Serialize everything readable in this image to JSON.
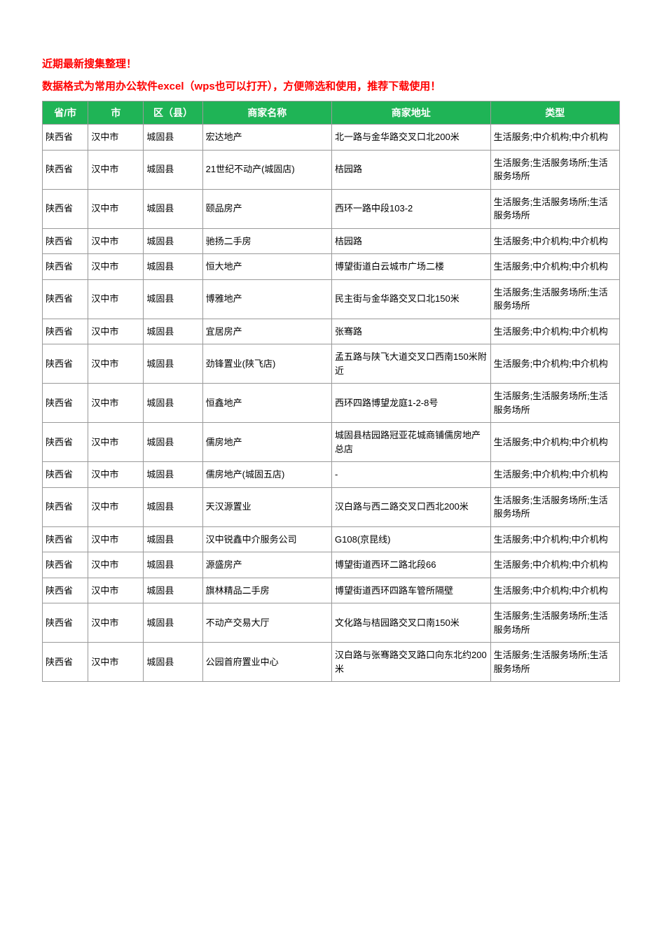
{
  "notice_line1": "近期最新搜集整理！",
  "notice_line2": "数据格式为常用办公软件excel（wps也可以打开），方便筛选和使用，推荐下载使用！",
  "header_bg_color": "#1fb456",
  "header_text_color": "#ffffff",
  "notice_color": "#ff0000",
  "border_color": "#999999",
  "columns": [
    {
      "key": "province",
      "label": "省/市",
      "class": "col-province"
    },
    {
      "key": "city",
      "label": "市",
      "class": "col-city"
    },
    {
      "key": "district",
      "label": "区（县）",
      "class": "col-district"
    },
    {
      "key": "name",
      "label": "商家名称",
      "class": "col-name"
    },
    {
      "key": "address",
      "label": "商家地址",
      "class": "col-address"
    },
    {
      "key": "type",
      "label": "类型",
      "class": "col-type"
    }
  ],
  "rows": [
    {
      "province": "陕西省",
      "city": "汉中市",
      "district": "城固县",
      "name": "宏达地产",
      "address": "北一路与金华路交叉口北200米",
      "type": "生活服务;中介机构;中介机构"
    },
    {
      "province": "陕西省",
      "city": "汉中市",
      "district": "城固县",
      "name": "21世纪不动产(城固店)",
      "address": "桔园路",
      "type": "生活服务;生活服务场所;生活服务场所"
    },
    {
      "province": "陕西省",
      "city": "汉中市",
      "district": "城固县",
      "name": "颐品房产",
      "address": "西环一路中段103-2",
      "type": "生活服务;生活服务场所;生活服务场所"
    },
    {
      "province": "陕西省",
      "city": "汉中市",
      "district": "城固县",
      "name": "驰扬二手房",
      "address": "桔园路",
      "type": "生活服务;中介机构;中介机构"
    },
    {
      "province": "陕西省",
      "city": "汉中市",
      "district": "城固县",
      "name": "恒大地产",
      "address": "博望街道白云城市广场二楼",
      "type": "生活服务;中介机构;中介机构"
    },
    {
      "province": "陕西省",
      "city": "汉中市",
      "district": "城固县",
      "name": "博雅地产",
      "address": "民主街与金华路交叉口北150米",
      "type": "生活服务;生活服务场所;生活服务场所"
    },
    {
      "province": "陕西省",
      "city": "汉中市",
      "district": "城固县",
      "name": "宜居房产",
      "address": "张骞路",
      "type": "生活服务;中介机构;中介机构"
    },
    {
      "province": "陕西省",
      "city": "汉中市",
      "district": "城固县",
      "name": "劲锋置业(陕飞店)",
      "address": "孟五路与陕飞大道交叉口西南150米附近",
      "type": "生活服务;中介机构;中介机构"
    },
    {
      "province": "陕西省",
      "city": "汉中市",
      "district": "城固县",
      "name": "恒鑫地产",
      "address": "西环四路博望龙庭1-2-8号",
      "type": "生活服务;生活服务场所;生活服务场所"
    },
    {
      "province": "陕西省",
      "city": "汉中市",
      "district": "城固县",
      "name": "儒房地产",
      "address": "城固县桔园路冠亚花城商铺儒房地产总店",
      "type": "生活服务;中介机构;中介机构"
    },
    {
      "province": "陕西省",
      "city": "汉中市",
      "district": "城固县",
      "name": "儒房地产(城固五店)",
      "address": "-",
      "type": "生活服务;中介机构;中介机构"
    },
    {
      "province": "陕西省",
      "city": "汉中市",
      "district": "城固县",
      "name": "天汉源置业",
      "address": "汉白路与西二路交叉口西北200米",
      "type": "生活服务;生活服务场所;生活服务场所"
    },
    {
      "province": "陕西省",
      "city": "汉中市",
      "district": "城固县",
      "name": "汉中锐鑫中介服务公司",
      "address": "G108(京昆线)",
      "type": "生活服务;中介机构;中介机构"
    },
    {
      "province": "陕西省",
      "city": "汉中市",
      "district": "城固县",
      "name": "源盛房产",
      "address": "博望街道西环二路北段66",
      "type": "生活服务;中介机构;中介机构"
    },
    {
      "province": "陕西省",
      "city": "汉中市",
      "district": "城固县",
      "name": "旗林精品二手房",
      "address": "博望街道西环四路车管所隔壁",
      "type": "生活服务;中介机构;中介机构"
    },
    {
      "province": "陕西省",
      "city": "汉中市",
      "district": "城固县",
      "name": "不动产交易大厅",
      "address": "文化路与桔园路交叉口南150米",
      "type": "生活服务;生活服务场所;生活服务场所"
    },
    {
      "province": "陕西省",
      "city": "汉中市",
      "district": "城固县",
      "name": "公园首府置业中心",
      "address": "汉白路与张骞路交叉路口向东北约200米",
      "type": "生活服务;生活服务场所;生活服务场所"
    }
  ]
}
